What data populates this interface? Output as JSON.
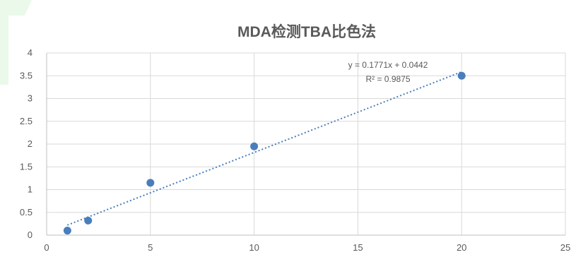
{
  "chart_data": {
    "type": "scatter",
    "title": "MDA检测TBA比色法",
    "xlabel": "",
    "ylabel": "",
    "xlim": [
      0,
      25
    ],
    "ylim": [
      0,
      4
    ],
    "x_ticks": [
      0,
      5,
      10,
      15,
      20,
      25
    ],
    "y_ticks": [
      0,
      0.5,
      1,
      1.5,
      2,
      2.5,
      3,
      3.5,
      4
    ],
    "grid": true,
    "legend": "none",
    "series": [
      {
        "points": [
          {
            "x": 1,
            "y": 0.1
          },
          {
            "x": 2,
            "y": 0.32
          },
          {
            "x": 5,
            "y": 1.15
          },
          {
            "x": 10,
            "y": 1.95
          },
          {
            "x": 20,
            "y": 3.5
          }
        ],
        "color": "#4a7ebb"
      }
    ],
    "trendline": {
      "type": "linear",
      "slope": 0.1771,
      "intercept": 0.0442,
      "x_range": [
        1,
        20
      ],
      "style": "dotted",
      "color": "#4a7ebb",
      "equation_label": "y = 0.1771x + 0.0442",
      "r2_label": "R² = 0.9875"
    }
  }
}
